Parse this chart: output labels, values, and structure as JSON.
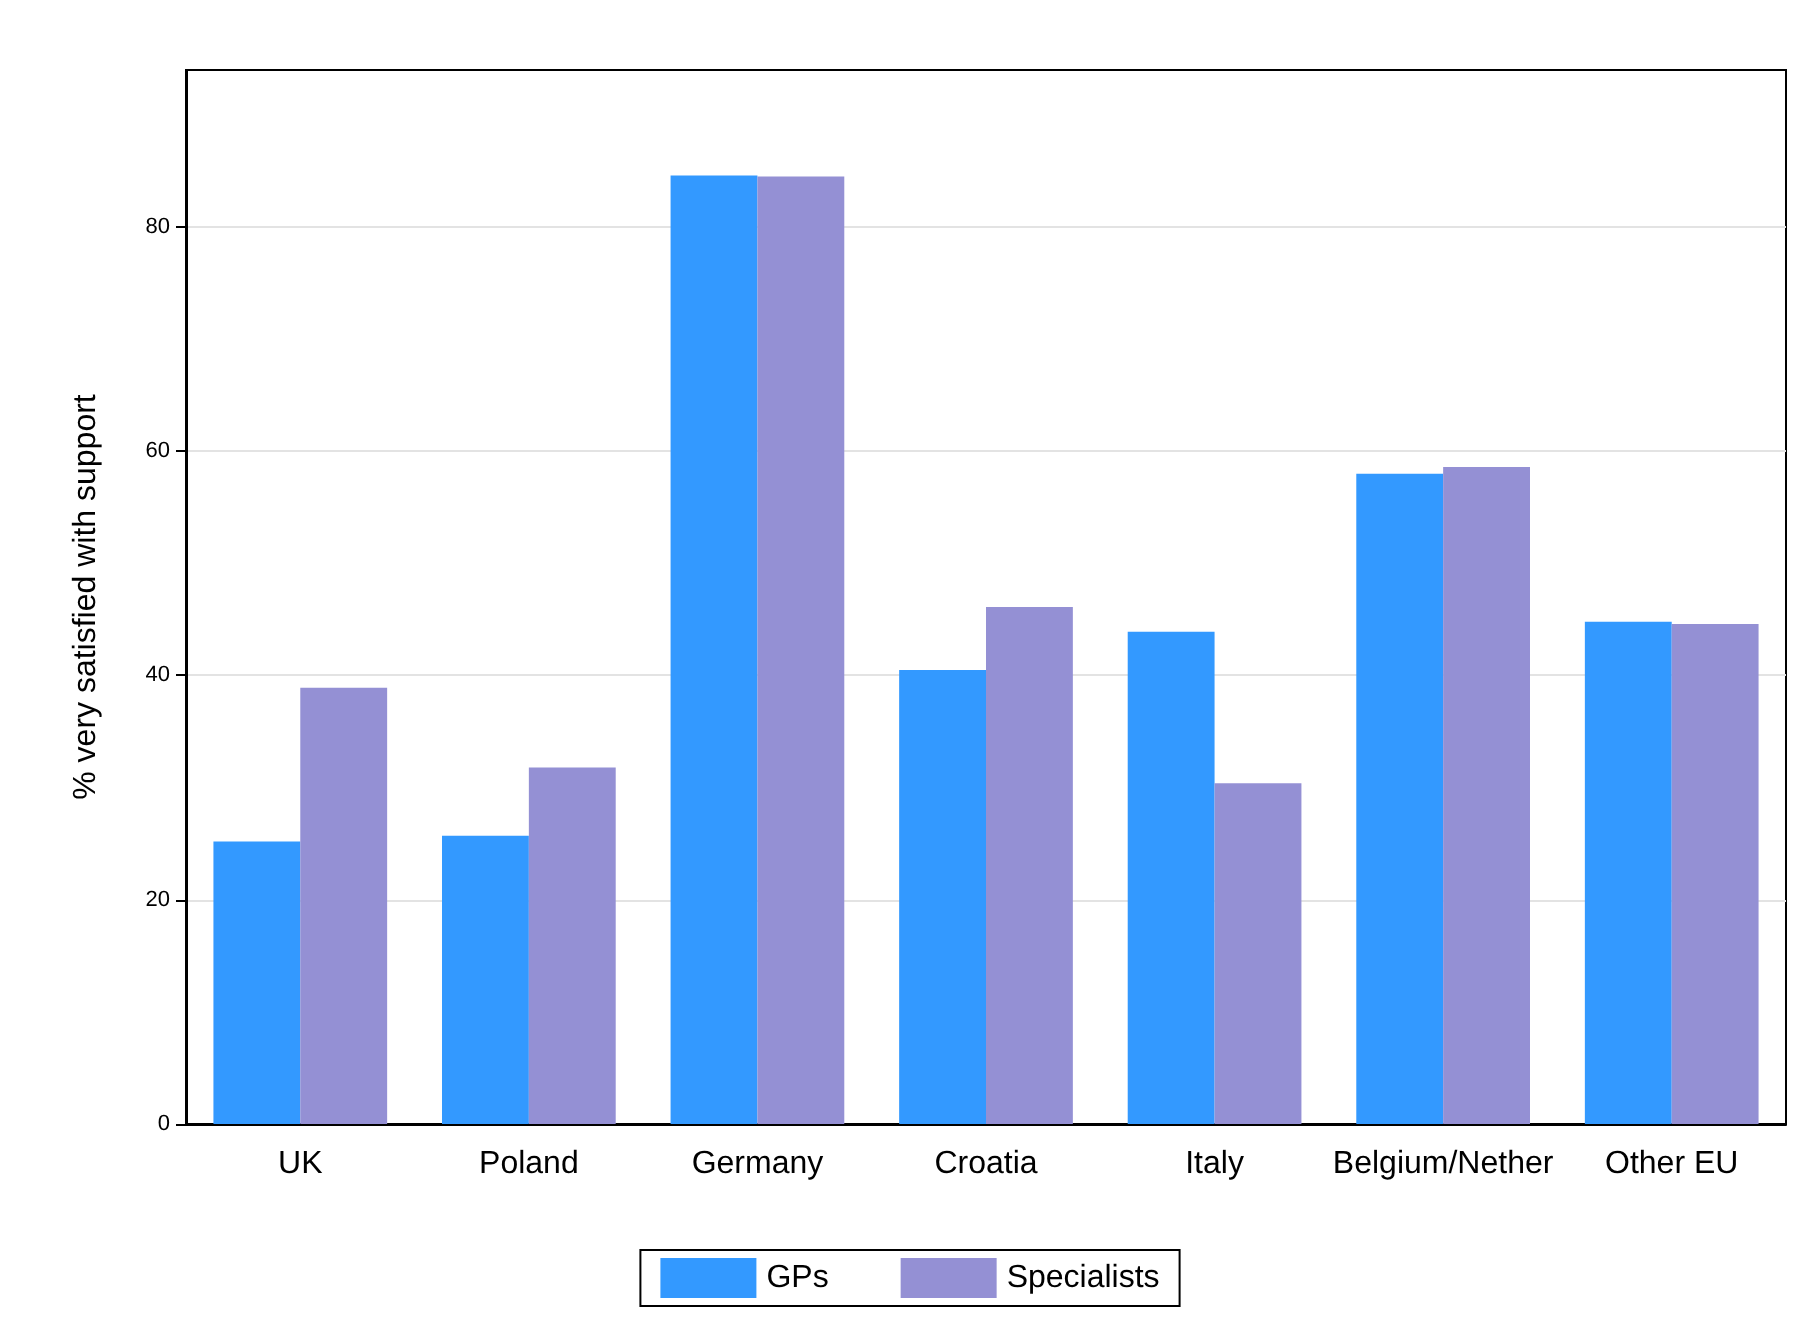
{
  "chart_data": {
    "type": "bar",
    "ylabel": "% very satisfied with support",
    "categories": [
      "UK",
      "Poland",
      "Germany",
      "Croatia",
      "Italy",
      "Belgium/Nether",
      "Other EU"
    ],
    "series": [
      {
        "name": "GPs",
        "color": "#3399ff",
        "values": [
          25.2,
          25.7,
          84.6,
          40.5,
          43.9,
          58.0,
          44.8
        ]
      },
      {
        "name": "Specialists",
        "color": "#9490d4",
        "values": [
          38.9,
          31.8,
          84.5,
          46.1,
          30.4,
          58.6,
          44.6
        ]
      }
    ],
    "ylim": [
      0,
      94
    ],
    "yticks": [
      0,
      20,
      40,
      60,
      80
    ],
    "grid": "y",
    "legend": "bottom"
  }
}
